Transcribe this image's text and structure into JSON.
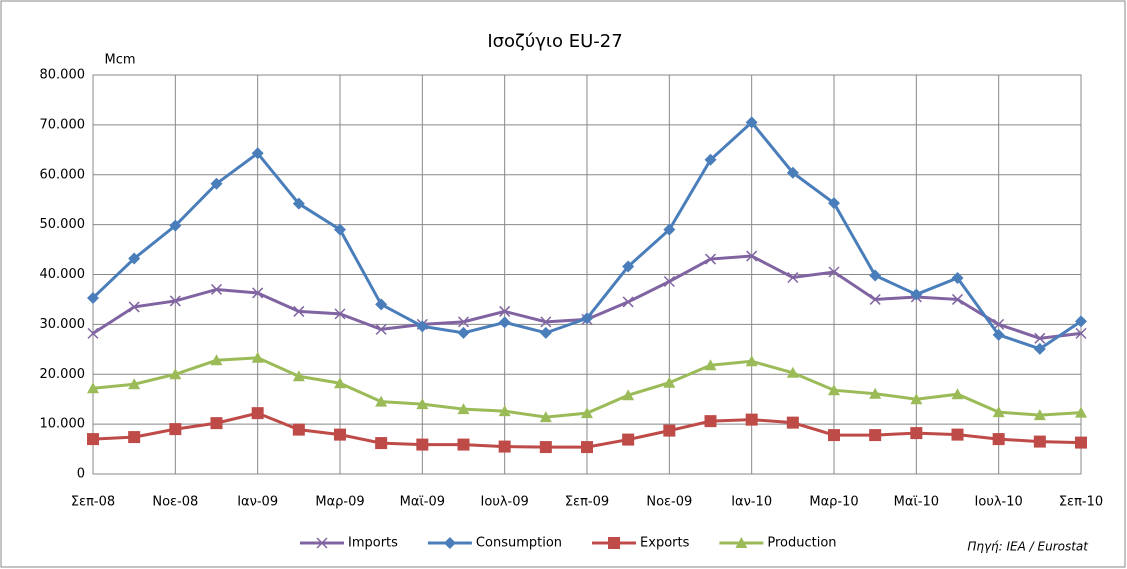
{
  "chart_data": {
    "type": "line",
    "title": "Ισοζύγιο EU-27",
    "y_label": "Mcm",
    "source": "Πηγή: IEA /  Eurostat",
    "categories": [
      "Σεπ-08",
      null,
      "Νοε-08",
      null,
      "Ιαν-09",
      null,
      "Μαρ-09",
      null,
      "Μαϊ-09",
      null,
      "Ιουλ-09",
      null,
      "Σεπ-09",
      null,
      "Νοε-09",
      null,
      "Ιαν-10",
      null,
      "Μαρ-10",
      null,
      "Μαϊ-10",
      null,
      "Ιουλ-10",
      null,
      "Σεπ-10"
    ],
    "series": [
      {
        "name": "Imports",
        "color": "#8064a2",
        "marker": "x",
        "values": [
          28200,
          33500,
          34700,
          37000,
          36300,
          32600,
          32100,
          29000,
          30000,
          30500,
          32600,
          30500,
          31000,
          34500,
          38600,
          43100,
          43700,
          39400,
          40500,
          35000,
          35500,
          35000,
          30000,
          27200,
          28200
        ]
      },
      {
        "name": "Consumption",
        "color": "#4a7ebb",
        "marker": "diamond",
        "values": [
          35300,
          43200,
          49800,
          58200,
          64300,
          54200,
          49000,
          34000,
          29600,
          28300,
          30400,
          28300,
          31200,
          41600,
          49000,
          63000,
          70500,
          60400,
          54300,
          39800,
          36000,
          39300,
          27900,
          25100,
          30600
        ]
      },
      {
        "name": "Exports",
        "color": "#be4b48",
        "marker": "square",
        "values": [
          7000,
          7400,
          9000,
          10200,
          12200,
          8900,
          7900,
          6200,
          5900,
          5900,
          5500,
          5400,
          5400,
          6900,
          8700,
          10600,
          10900,
          10300,
          7800,
          7800,
          8200,
          7900,
          7000,
          6500,
          6300
        ]
      },
      {
        "name": "Production",
        "color": "#9bbb59",
        "marker": "triangle",
        "values": [
          17200,
          18000,
          20000,
          22800,
          23300,
          19600,
          18200,
          14500,
          14000,
          13000,
          12600,
          11400,
          12200,
          15800,
          18300,
          21800,
          22600,
          20300,
          16800,
          16100,
          15000,
          16000,
          12400,
          11800,
          12300
        ]
      }
    ],
    "ylim": [
      0,
      80000
    ],
    "yticks": [
      0,
      {
        "value": 10000,
        "label": "10.000"
      },
      {
        "value": 20000,
        "label": "20.000"
      },
      {
        "value": 30000,
        "label": "30.000"
      },
      {
        "value": 40000,
        "label": "40.000"
      },
      {
        "value": 50000,
        "label": "50.000"
      },
      {
        "value": 60000,
        "label": "60.000"
      },
      {
        "value": 70000,
        "label": "70.000"
      },
      {
        "value": 80000,
        "label": "80.000"
      }
    ],
    "grid": true,
    "legend": "bottom"
  }
}
